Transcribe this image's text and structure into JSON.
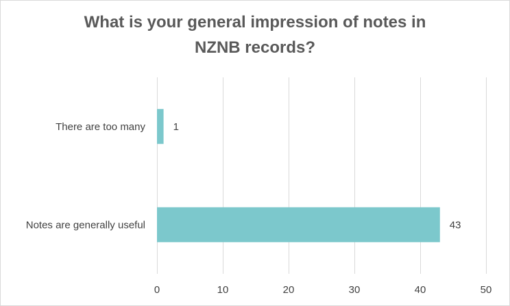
{
  "chart_data": {
    "type": "bar",
    "orientation": "horizontal",
    "title": "What is your general impression of notes in NZNB records?",
    "title_lines": [
      "What is your general impression of notes in",
      "NZNB records?"
    ],
    "categories": [
      "There are too many",
      "Notes are generally useful"
    ],
    "values": [
      1,
      43
    ],
    "data_labels": [
      "1",
      "43"
    ],
    "xlabel": "",
    "ylabel": "",
    "xlim": [
      0,
      50
    ],
    "x_ticks": [
      0,
      10,
      20,
      30,
      40,
      50
    ],
    "x_tick_labels": [
      "0",
      "10",
      "20",
      "30",
      "40",
      "50"
    ],
    "grid": true,
    "legend": "none",
    "colors": {
      "bar": "#7CC8CC",
      "grid": "#d9d9d9",
      "text": "#404040",
      "title": "#595959"
    }
  }
}
